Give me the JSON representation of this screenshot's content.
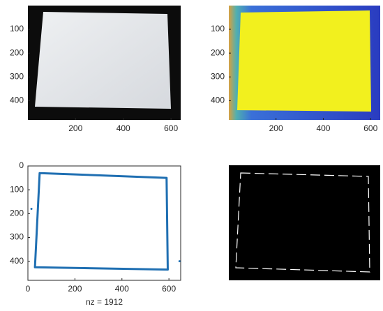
{
  "chart_data": [
    {
      "type": "image",
      "xlim": [
        0.5,
        640.5
      ],
      "ylim": [
        0.5,
        480.5
      ],
      "xticks": [
        200,
        400,
        600
      ],
      "yticks": [
        100,
        200,
        300,
        400
      ]
    },
    {
      "type": "image",
      "xlim": [
        0.5,
        640.5
      ],
      "ylim": [
        0.5,
        480.5
      ],
      "xticks": [
        200,
        400,
        600
      ],
      "yticks": [
        100,
        200,
        300,
        400
      ]
    },
    {
      "type": "spy",
      "xlim": [
        0,
        650
      ],
      "ylim": [
        0,
        480
      ],
      "xticks": [
        0,
        200,
        400,
        600
      ],
      "yticks": [
        0,
        100,
        200,
        300,
        400
      ],
      "xlabel": "nz = 1912",
      "series": [
        {
          "color": "#1f6fb2",
          "x": [
            50,
            590,
            595,
            30,
            50,
            null,
            15,
            null,
            645
          ],
          "y": [
            30,
            50,
            435,
            425,
            30,
            null,
            180,
            null,
            400
          ]
        }
      ]
    }
  ]
}
